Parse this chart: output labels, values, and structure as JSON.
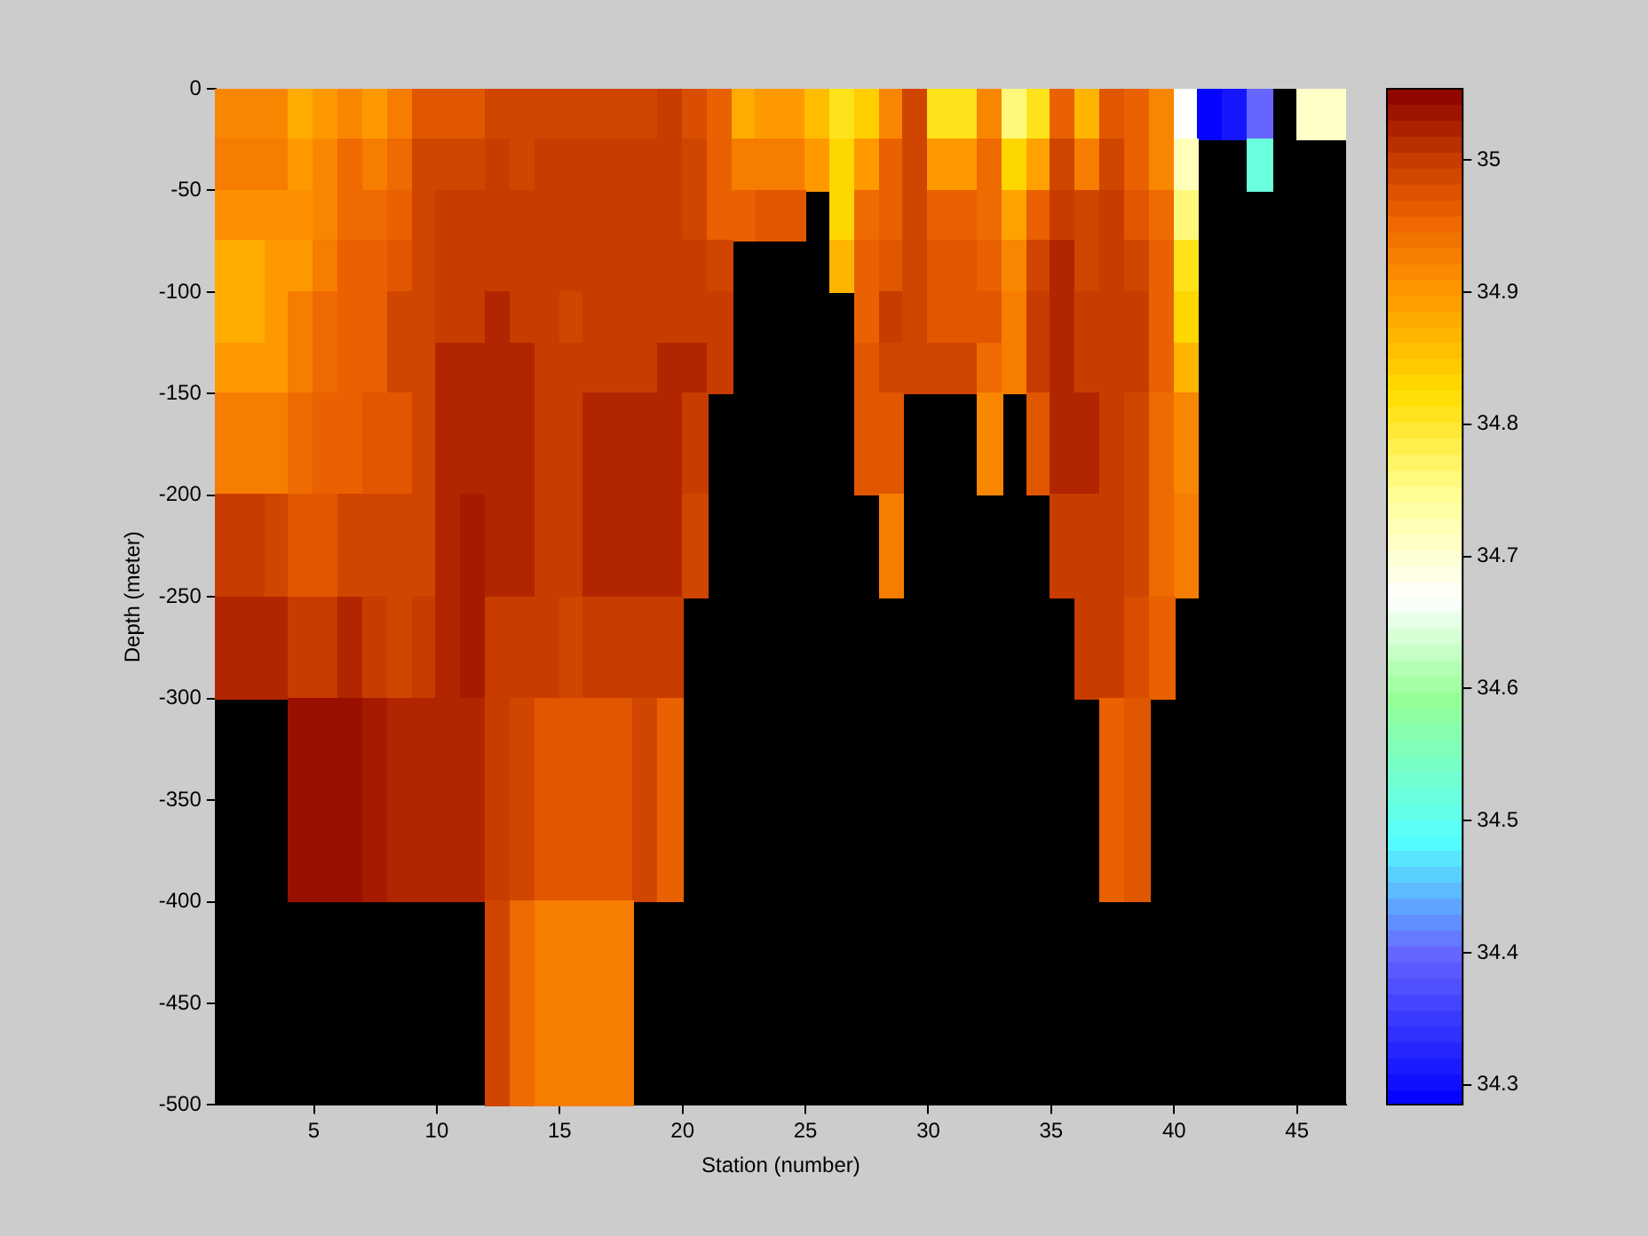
{
  "chart_data": {
    "type": "heatmap",
    "xlabel": "Station (number)",
    "ylabel": "Depth (meter)",
    "x": [
      1.5,
      2.5,
      3.5,
      4.5,
      5.5,
      6.5,
      7.5,
      8.5,
      9.5,
      10.5,
      11.5,
      12.5,
      13.5,
      14.5,
      15.5,
      16.5,
      17.5,
      18.5,
      19.5,
      20.5,
      21.5,
      22.5,
      23.5,
      24.5,
      25.5,
      26.5,
      27.5,
      28.5,
      29.5,
      30.5,
      31.5,
      32.5,
      33.5,
      34.5,
      35.5,
      36.5,
      37.5,
      38.5,
      39.5,
      40.5,
      41.5,
      42.5,
      43.5,
      44.5,
      45.5,
      46.5
    ],
    "cells": [
      [
        34.92,
        34.92,
        34.92,
        34.88,
        34.9,
        34.92,
        34.9,
        34.93,
        34.97,
        34.97,
        34.97,
        34.99,
        34.99,
        34.99,
        34.99,
        34.99,
        34.99,
        34.99,
        35.0,
        34.98,
        34.96,
        34.88,
        34.9,
        34.9,
        34.86,
        34.81,
        34.84,
        34.92,
        34.99,
        34.81,
        34.81,
        34.92,
        34.76,
        34.81,
        34.96,
        34.87,
        34.97,
        34.96,
        34.92,
        34.67,
        34.29,
        34.31,
        34.4,
        null,
        34.71,
        34.71
      ],
      [
        34.93,
        34.93,
        34.93,
        34.9,
        34.92,
        34.95,
        34.93,
        34.95,
        34.99,
        34.99,
        34.99,
        35.0,
        34.99,
        35.0,
        35.0,
        35.0,
        35.0,
        35.0,
        35.0,
        34.99,
        34.96,
        34.93,
        34.93,
        34.93,
        34.9,
        34.83,
        34.9,
        34.96,
        34.99,
        34.9,
        34.9,
        34.95,
        34.83,
        34.89,
        34.99,
        34.93,
        34.99,
        34.96,
        34.92,
        34.72,
        null,
        null,
        34.52,
        null,
        null,
        null
      ],
      [
        34.91,
        34.91,
        34.91,
        34.91,
        34.92,
        34.95,
        34.95,
        34.96,
        34.99,
        35.0,
        35.0,
        35.0,
        35.0,
        35.0,
        35.0,
        35.0,
        35.0,
        35.0,
        35.0,
        34.99,
        34.96,
        34.96,
        34.97,
        34.97,
        null,
        34.83,
        34.95,
        34.96,
        34.99,
        34.96,
        34.96,
        34.95,
        34.89,
        34.96,
        35.0,
        34.99,
        35.0,
        34.97,
        34.95,
        34.76,
        null,
        null,
        null,
        null,
        null,
        null
      ],
      [
        34.88,
        34.88,
        34.9,
        34.9,
        34.93,
        34.96,
        34.96,
        34.97,
        34.99,
        35.0,
        35.0,
        35.0,
        35.0,
        35.0,
        35.0,
        35.0,
        35.0,
        35.0,
        35.0,
        35.0,
        34.99,
        null,
        null,
        null,
        null,
        34.87,
        34.96,
        34.97,
        34.99,
        34.97,
        34.97,
        34.96,
        34.92,
        34.99,
        35.02,
        34.99,
        35.0,
        34.99,
        34.96,
        34.81,
        null,
        null,
        null,
        null,
        null,
        null
      ],
      [
        34.88,
        34.88,
        34.9,
        34.93,
        34.95,
        34.96,
        34.96,
        34.99,
        34.99,
        35.0,
        35.0,
        35.02,
        35.0,
        35.0,
        34.99,
        35.0,
        35.0,
        35.0,
        35.0,
        35.0,
        35.0,
        null,
        null,
        null,
        null,
        null,
        34.96,
        35.0,
        34.99,
        34.97,
        34.97,
        34.97,
        34.93,
        35.0,
        35.02,
        35.0,
        35.0,
        35.0,
        34.96,
        34.83,
        null,
        null,
        null,
        null,
        null,
        null
      ],
      [
        34.9,
        34.9,
        34.9,
        34.93,
        34.95,
        34.96,
        34.96,
        34.99,
        34.99,
        35.02,
        35.02,
        35.02,
        35.02,
        35.0,
        35.0,
        35.0,
        35.0,
        35.0,
        35.02,
        35.02,
        35.0,
        null,
        null,
        null,
        null,
        null,
        34.97,
        34.99,
        34.99,
        34.99,
        34.99,
        34.95,
        34.93,
        35.0,
        35.02,
        35.0,
        35.0,
        35.0,
        34.96,
        34.87,
        null,
        null,
        null,
        null,
        null,
        null
      ],
      [
        34.93,
        34.93,
        34.93,
        34.95,
        34.96,
        34.96,
        34.97,
        34.97,
        34.99,
        35.02,
        35.02,
        35.02,
        35.02,
        35.0,
        35.0,
        35.02,
        35.02,
        35.02,
        35.02,
        35.0,
        null,
        null,
        null,
        null,
        null,
        null,
        34.97,
        34.97,
        null,
        null,
        null,
        34.92,
        null,
        34.97,
        35.02,
        35.02,
        35.0,
        34.99,
        34.95,
        34.92,
        null,
        null,
        null,
        null,
        null,
        null
      ],
      [
        34.93,
        34.93,
        34.93,
        34.95,
        34.96,
        34.96,
        34.97,
        34.97,
        34.99,
        35.02,
        35.02,
        35.02,
        35.02,
        35.0,
        35.0,
        35.02,
        35.02,
        35.02,
        35.02,
        35.0,
        null,
        null,
        null,
        null,
        null,
        null,
        34.97,
        34.97,
        null,
        null,
        null,
        34.92,
        null,
        34.97,
        35.02,
        35.02,
        35.0,
        34.99,
        34.95,
        34.92,
        null,
        null,
        null,
        null,
        null,
        null
      ],
      [
        35.0,
        35.0,
        34.99,
        34.97,
        34.97,
        34.99,
        34.99,
        34.99,
        34.99,
        35.02,
        35.03,
        35.02,
        35.02,
        35.0,
        35.0,
        35.02,
        35.02,
        35.02,
        35.02,
        34.99,
        null,
        null,
        null,
        null,
        null,
        null,
        null,
        34.93,
        null,
        null,
        null,
        null,
        null,
        null,
        35.0,
        35.0,
        35.0,
        34.99,
        34.95,
        34.93,
        null,
        null,
        null,
        null,
        null,
        null
      ],
      [
        35.0,
        35.0,
        34.99,
        34.97,
        34.97,
        34.99,
        34.99,
        34.99,
        34.99,
        35.02,
        35.03,
        35.02,
        35.02,
        35.0,
        35.0,
        35.02,
        35.02,
        35.02,
        35.02,
        34.99,
        null,
        null,
        null,
        null,
        null,
        null,
        null,
        34.93,
        null,
        null,
        null,
        null,
        null,
        null,
        35.0,
        35.0,
        35.0,
        34.99,
        34.95,
        34.93,
        null,
        null,
        null,
        null,
        null,
        null
      ],
      [
        35.02,
        35.02,
        35.02,
        35.0,
        35.0,
        35.02,
        35.0,
        34.99,
        35.0,
        35.02,
        35.03,
        35.0,
        35.0,
        35.0,
        34.99,
        35.0,
        35.0,
        35.0,
        35.0,
        null,
        null,
        null,
        null,
        null,
        null,
        null,
        null,
        null,
        null,
        null,
        null,
        null,
        null,
        null,
        null,
        35.0,
        35.0,
        34.98,
        34.96,
        null,
        null,
        null,
        null,
        null,
        null,
        null
      ],
      [
        35.02,
        35.02,
        35.02,
        35.0,
        35.0,
        35.02,
        35.0,
        34.99,
        35.0,
        35.02,
        35.03,
        35.0,
        35.0,
        35.0,
        34.99,
        35.0,
        35.0,
        35.0,
        35.0,
        null,
        null,
        null,
        null,
        null,
        null,
        null,
        null,
        null,
        null,
        null,
        null,
        null,
        null,
        null,
        null,
        35.0,
        35.0,
        34.98,
        34.96,
        null,
        null,
        null,
        null,
        null,
        null,
        null
      ],
      [
        null,
        null,
        null,
        35.04,
        35.04,
        35.04,
        35.03,
        35.02,
        35.02,
        35.02,
        35.02,
        35.0,
        34.99,
        34.97,
        34.97,
        34.97,
        34.97,
        34.99,
        34.96,
        null,
        null,
        null,
        null,
        null,
        null,
        null,
        null,
        null,
        null,
        null,
        null,
        null,
        null,
        null,
        null,
        null,
        34.96,
        34.97,
        null,
        null,
        null,
        null,
        null,
        null,
        null,
        null
      ],
      [
        null,
        null,
        null,
        35.04,
        35.04,
        35.04,
        35.03,
        35.02,
        35.02,
        35.02,
        35.02,
        35.0,
        34.99,
        34.97,
        34.97,
        34.97,
        34.97,
        34.99,
        34.96,
        null,
        null,
        null,
        null,
        null,
        null,
        null,
        null,
        null,
        null,
        null,
        null,
        null,
        null,
        null,
        null,
        null,
        34.96,
        34.97,
        null,
        null,
        null,
        null,
        null,
        null,
        null,
        null
      ],
      [
        null,
        null,
        null,
        35.04,
        35.04,
        35.04,
        35.03,
        35.02,
        35.02,
        35.02,
        35.02,
        35.0,
        34.99,
        34.97,
        34.97,
        34.97,
        34.97,
        34.99,
        34.96,
        null,
        null,
        null,
        null,
        null,
        null,
        null,
        null,
        null,
        null,
        null,
        null,
        null,
        null,
        null,
        null,
        null,
        34.96,
        34.97,
        null,
        null,
        null,
        null,
        null,
        null,
        null,
        null
      ],
      [
        null,
        null,
        null,
        35.04,
        35.04,
        35.04,
        35.03,
        35.02,
        35.02,
        35.02,
        35.02,
        35.0,
        34.99,
        34.97,
        34.97,
        34.97,
        34.97,
        34.99,
        34.96,
        null,
        null,
        null,
        null,
        null,
        null,
        null,
        null,
        null,
        null,
        null,
        null,
        null,
        null,
        null,
        null,
        null,
        34.96,
        34.97,
        null,
        null,
        null,
        null,
        null,
        null,
        null,
        null
      ],
      [
        null,
        null,
        null,
        null,
        null,
        null,
        null,
        null,
        null,
        null,
        null,
        34.99,
        34.95,
        34.93,
        34.93,
        34.93,
        34.93,
        null,
        null,
        null,
        null,
        null,
        null,
        null,
        null,
        null,
        null,
        null,
        null,
        null,
        null,
        null,
        null,
        null,
        null,
        null,
        null,
        null,
        null,
        null,
        null,
        null,
        null,
        null,
        null,
        null
      ],
      [
        null,
        null,
        null,
        null,
        null,
        null,
        null,
        null,
        null,
        null,
        null,
        34.99,
        34.95,
        34.93,
        34.93,
        34.93,
        34.93,
        null,
        null,
        null,
        null,
        null,
        null,
        null,
        null,
        null,
        null,
        null,
        null,
        null,
        null,
        null,
        null,
        null,
        null,
        null,
        null,
        null,
        null,
        null,
        null,
        null,
        null,
        null,
        null,
        null
      ],
      [
        null,
        null,
        null,
        null,
        null,
        null,
        null,
        null,
        null,
        null,
        null,
        34.99,
        34.95,
        34.93,
        34.93,
        34.93,
        34.93,
        null,
        null,
        null,
        null,
        null,
        null,
        null,
        null,
        null,
        null,
        null,
        null,
        null,
        null,
        null,
        null,
        null,
        null,
        null,
        null,
        null,
        null,
        null,
        null,
        null,
        null,
        null,
        null,
        null
      ],
      [
        null,
        null,
        null,
        null,
        null,
        null,
        null,
        null,
        null,
        null,
        null,
        34.99,
        34.95,
        34.93,
        34.93,
        34.93,
        34.93,
        null,
        null,
        null,
        null,
        null,
        null,
        null,
        null,
        null,
        null,
        null,
        null,
        null,
        null,
        null,
        null,
        null,
        null,
        null,
        null,
        null,
        null,
        null,
        null,
        null,
        null,
        null,
        null,
        null
      ]
    ],
    "xlim": [
      1,
      47
    ],
    "xticks": [
      5,
      10,
      15,
      20,
      25,
      30,
      35,
      40,
      45
    ],
    "ylim": [
      -500,
      0
    ],
    "yticks": [
      -500,
      -450,
      -400,
      -350,
      -300,
      -250,
      -200,
      -150,
      -100,
      -50,
      0
    ],
    "clim": [
      34.285,
      35.054
    ],
    "cticks": [
      34.3,
      34.4,
      34.5,
      34.6,
      34.7,
      34.8,
      34.9,
      35
    ]
  }
}
